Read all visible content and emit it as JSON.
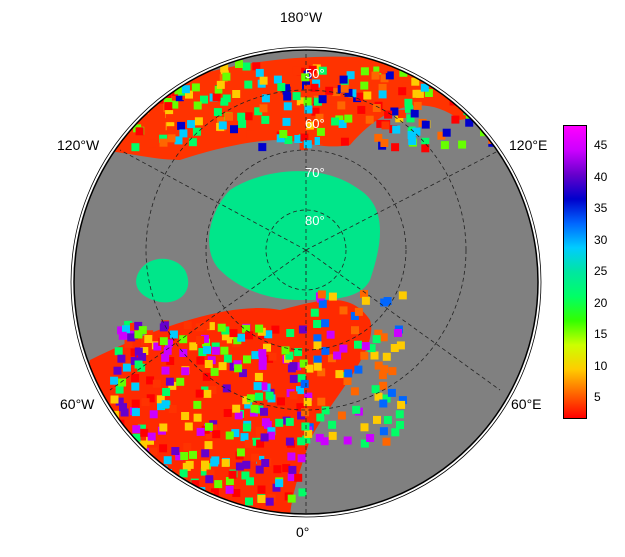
{
  "map": {
    "projection": "north-polar-stereographic",
    "lon_labels": {
      "top": "180°W",
      "bottom": "0°",
      "upper_left": "120°W",
      "upper_right": "120°E",
      "lower_left": "60°W",
      "lower_right": "60°E"
    },
    "lat_labels": [
      "50°",
      "60°",
      "70°",
      "80°"
    ],
    "colors": {
      "land": "#808080",
      "background": "#ffffff",
      "ice_value": "#00e68a"
    }
  },
  "colorbar": {
    "ticks": [
      "45",
      "40",
      "35",
      "30",
      "25",
      "20",
      "15",
      "10",
      "5"
    ],
    "range": [
      1,
      48
    ],
    "colors": [
      "#ff0000",
      "#ff6600",
      "#ffcc00",
      "#ccff00",
      "#33ff00",
      "#00ff66",
      "#00e6a0",
      "#00ccff",
      "#0066ff",
      "#0000cc",
      "#6600cc",
      "#cc00ff",
      "#ff00ff"
    ]
  }
}
